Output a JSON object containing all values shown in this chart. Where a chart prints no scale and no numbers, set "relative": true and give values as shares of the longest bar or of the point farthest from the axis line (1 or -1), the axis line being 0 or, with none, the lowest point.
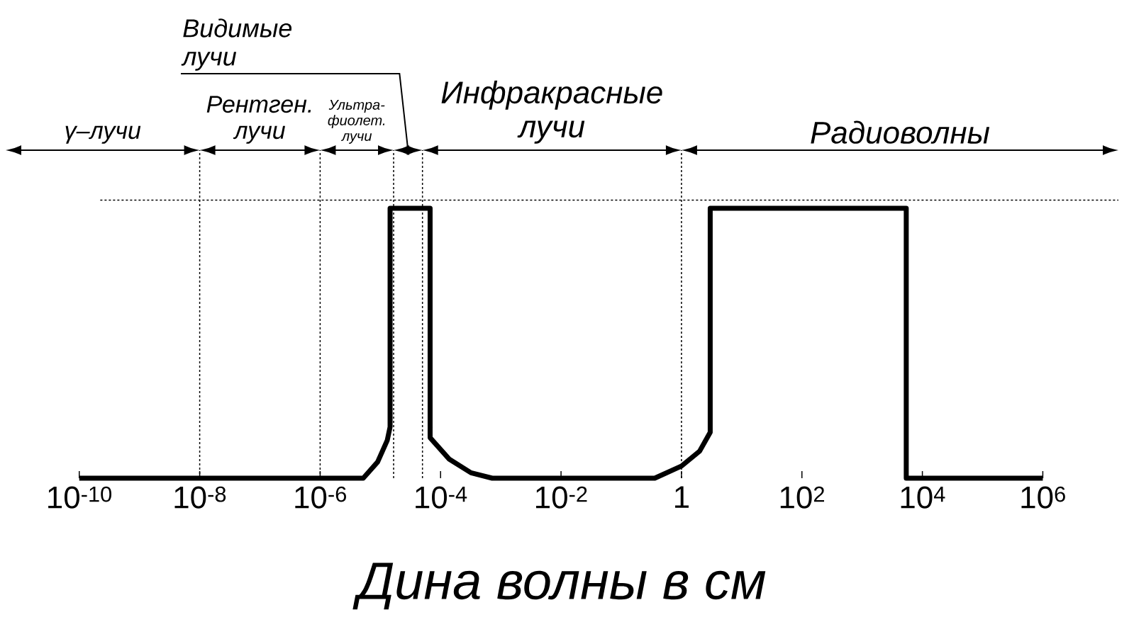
{
  "chart_data": {
    "type": "line",
    "relative": true,
    "log": "x",
    "xlabel": "Дина волны в см",
    "marker": "none",
    "line_style": "solid",
    "x": [
      1e-10,
      5.2e-06,
      9e-06,
      1.3e-05,
      1.45e-05,
      1.45e-05,
      6.7e-05,
      6.7e-05,
      0.00014,
      0.00032,
      0.00072,
      0.36,
      1,
      2,
      3,
      3,
      5400,
      5400,
      1000000.0
    ],
    "series": [
      {
        "color": "#000000",
        "values": [
          0,
          0,
          0.06,
          0.14,
          0.19,
          1,
          1,
          0.15,
          0.07,
          0.02,
          0,
          0,
          0.045,
          0.1,
          0.17,
          1,
          1,
          0,
          0
        ]
      }
    ],
    "xlim": [
      6e-12,
      18000000.0
    ],
    "xticks": [
      {
        "value": 1e-10,
        "label": "10$^{-10}$"
      },
      {
        "value": 1e-08,
        "label": "10$^{-8}$"
      },
      {
        "value": 1e-06,
        "label": "10$^{-6}$"
      },
      {
        "value": 0.0001,
        "label": "10$^{-4}$"
      },
      {
        "value": 0.01,
        "label": "10$^{-2}$"
      },
      1,
      {
        "value": 100,
        "label": "10$^{2}$"
      },
      {
        "value": 10000.0,
        "label": "10$^{4}$"
      },
      {
        "value": 1000000.0,
        "label": "10$^{6}$"
      }
    ],
    "ref_lines": [
      {
        "axis": "x",
        "value": 1e-08,
        "line_style": "dashed"
      },
      {
        "axis": "x",
        "value": 1e-06,
        "line_style": "dashed"
      },
      {
        "axis": "x",
        "value": 1.66e-05,
        "line_style": "dashed"
      },
      {
        "axis": "x",
        "value": 5e-05,
        "line_style": "dashed"
      },
      {
        "axis": "x",
        "value": 1,
        "line_style": "dashed"
      },
      {
        "axis": "y",
        "value": 1.03,
        "line_style": "dashed"
      }
    ],
    "annotations": [
      "γ–лучи",
      "Рентген. лучи",
      "Ультра-фиолет. лучи",
      "Видимые лучи",
      "Инфракрасные лучи",
      "Радиоволны"
    ]
  }
}
